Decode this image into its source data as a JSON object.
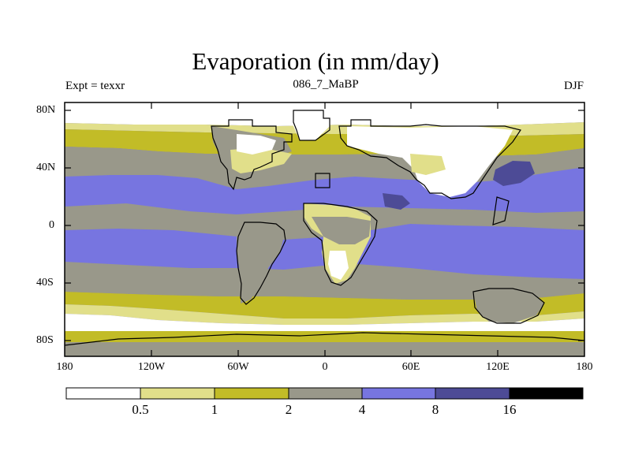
{
  "title": "Evaporation (in mm/day)",
  "left_label": "Expt = texxr",
  "center_label": "086_7_MaBP",
  "right_label": "DJF",
  "latitude_ticks": [
    "80N",
    "40N",
    "0",
    "40S",
    "80S"
  ],
  "longitude_ticks": [
    "180",
    "120W",
    "60W",
    "0",
    "60E",
    "120E",
    "180"
  ],
  "colorbar": {
    "levels": [
      "0.5",
      "1",
      "2",
      "4",
      "8",
      "16"
    ],
    "colors": [
      "#ffffff",
      "#e1df8a",
      "#c2bc27",
      "#99988a",
      "#7775e0",
      "#4d4b96",
      "#000000"
    ]
  },
  "palette": {
    "white": "#ffffff",
    "pale_yellow": "#e1df8a",
    "olive": "#c2bc27",
    "gray": "#99988a",
    "blue": "#7775e0",
    "dark_blue": "#4d4b96",
    "black": "#000000"
  }
}
